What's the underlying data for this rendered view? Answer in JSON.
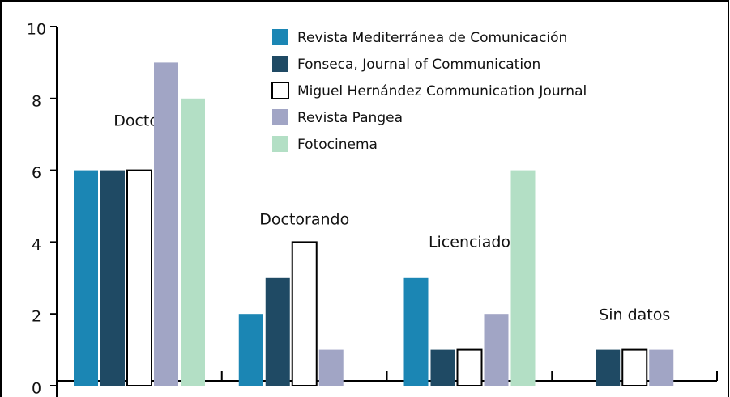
{
  "chart_data": {
    "type": "bar",
    "categories": [
      "Doctor",
      "Doctorando",
      "Licenciado",
      "Sin datos"
    ],
    "series": [
      {
        "name": "Revista Mediterránea de Comunicación",
        "color": "#1b86b4",
        "values": [
          6,
          2,
          3,
          0
        ]
      },
      {
        "name": "Fonseca, Journal of Communication",
        "color": "#1f4a64",
        "values": [
          6,
          3,
          1,
          1
        ]
      },
      {
        "name": "Miguel Hernández Communication Journal",
        "color": "#ffffff",
        "values": [
          6,
          4,
          1,
          1
        ]
      },
      {
        "name": "Revista Pangea",
        "color": "#a1a5c5",
        "values": [
          9,
          1,
          2,
          1
        ]
      },
      {
        "name": "Fotocinema",
        "color": "#b3dfc5",
        "values": [
          8,
          0,
          6,
          0
        ]
      }
    ],
    "ylim": [
      0,
      10
    ],
    "yticks": [
      0,
      2,
      4,
      6,
      8,
      10
    ],
    "grid": false,
    "legend": "top"
  }
}
